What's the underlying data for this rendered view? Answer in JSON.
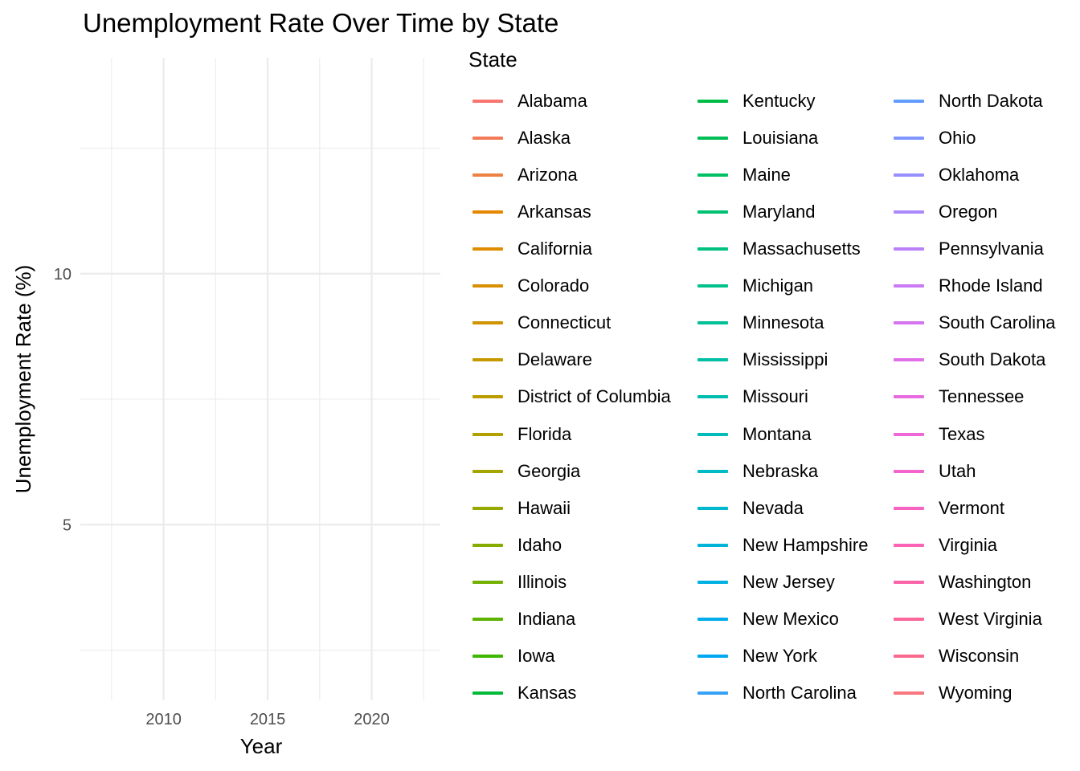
{
  "chart_data": {
    "type": "line",
    "title": "Unemployment Rate Over Time by State",
    "xlabel": "Year",
    "ylabel": "Unemployment Rate (%)",
    "x_ticks": [
      2010,
      2015,
      2020
    ],
    "y_ticks": [
      5,
      10
    ],
    "xlim": [
      2006,
      2023.3
    ],
    "ylim": [
      1.5,
      14.3
    ],
    "grid": true,
    "legend_position": "right",
    "legend_title": "State",
    "series": [
      {
        "name": "Alabama",
        "color": "#F8766D",
        "values": []
      },
      {
        "name": "Alaska",
        "color": "#F37B59",
        "values": []
      },
      {
        "name": "Arizona",
        "color": "#ED8141",
        "values": []
      },
      {
        "name": "Arkansas",
        "color": "#E58700",
        "values": []
      },
      {
        "name": "California",
        "color": "#DE8C00",
        "values": []
      },
      {
        "name": "Colorado",
        "color": "#D89000",
        "values": []
      },
      {
        "name": "Connecticut",
        "color": "#CF9400",
        "values": []
      },
      {
        "name": "Delaware",
        "color": "#C59900",
        "values": []
      },
      {
        "name": "District of Columbia",
        "color": "#BB9D00",
        "values": []
      },
      {
        "name": "Florida",
        "color": "#B0A100",
        "values": []
      },
      {
        "name": "Georgia",
        "color": "#A3A500",
        "values": []
      },
      {
        "name": "Hawaii",
        "color": "#96A900",
        "values": []
      },
      {
        "name": "Idaho",
        "color": "#86AC00",
        "values": []
      },
      {
        "name": "Illinois",
        "color": "#74B000",
        "values": []
      },
      {
        "name": "Indiana",
        "color": "#5EB300",
        "values": []
      },
      {
        "name": "Iowa",
        "color": "#3DB700",
        "values": []
      },
      {
        "name": "Kansas",
        "color": "#00BA38",
        "values": []
      },
      {
        "name": "Kentucky",
        "color": "#00BC45",
        "values": []
      },
      {
        "name": "Louisiana",
        "color": "#00BE56",
        "values": []
      },
      {
        "name": "Maine",
        "color": "#00C064",
        "values": []
      },
      {
        "name": "Maryland",
        "color": "#00C072",
        "values": []
      },
      {
        "name": "Massachusetts",
        "color": "#00C17F",
        "values": []
      },
      {
        "name": "Michigan",
        "color": "#00C18C",
        "values": []
      },
      {
        "name": "Minnesota",
        "color": "#00C098",
        "values": []
      },
      {
        "name": "Mississippi",
        "color": "#00BFA4",
        "values": []
      },
      {
        "name": "Missouri",
        "color": "#00BEAF",
        "values": []
      },
      {
        "name": "Montana",
        "color": "#00BCBA",
        "values": []
      },
      {
        "name": "Nebraska",
        "color": "#00BAC5",
        "values": []
      },
      {
        "name": "Nevada",
        "color": "#00B7CF",
        "values": []
      },
      {
        "name": "New Hampshire",
        "color": "#00B4D9",
        "values": []
      },
      {
        "name": "New Jersey",
        "color": "#00B0E2",
        "values": []
      },
      {
        "name": "New Mexico",
        "color": "#00ACEA",
        "values": []
      },
      {
        "name": "New York",
        "color": "#00A8F1",
        "values": []
      },
      {
        "name": "North Carolina",
        "color": "#35A2F7",
        "values": []
      },
      {
        "name": "North Dakota",
        "color": "#619CFF",
        "values": []
      },
      {
        "name": "Ohio",
        "color": "#7F96FF",
        "values": []
      },
      {
        "name": "Oklahoma",
        "color": "#978FFE",
        "values": []
      },
      {
        "name": "Oregon",
        "color": "#AB88FC",
        "values": []
      },
      {
        "name": "Pennsylvania",
        "color": "#BC81F8",
        "values": []
      },
      {
        "name": "Rhode Island",
        "color": "#CA7AF4",
        "values": []
      },
      {
        "name": "South Carolina",
        "color": "#D674EF",
        "values": []
      },
      {
        "name": "South Dakota",
        "color": "#E06FE8",
        "values": []
      },
      {
        "name": "Tennessee",
        "color": "#E86BE0",
        "values": []
      },
      {
        "name": "Texas",
        "color": "#EF67D7",
        "values": []
      },
      {
        "name": "Utah",
        "color": "#F464CD",
        "values": []
      },
      {
        "name": "Vermont",
        "color": "#F863C2",
        "values": []
      },
      {
        "name": "Virginia",
        "color": "#FA63B6",
        "values": []
      },
      {
        "name": "Washington",
        "color": "#FB64A9",
        "values": []
      },
      {
        "name": "West Virginia",
        "color": "#FB679B",
        "values": []
      },
      {
        "name": "Wisconsin",
        "color": "#F96A8D",
        "values": []
      },
      {
        "name": "Wyoming",
        "color": "#F8767D",
        "values": []
      }
    ]
  }
}
